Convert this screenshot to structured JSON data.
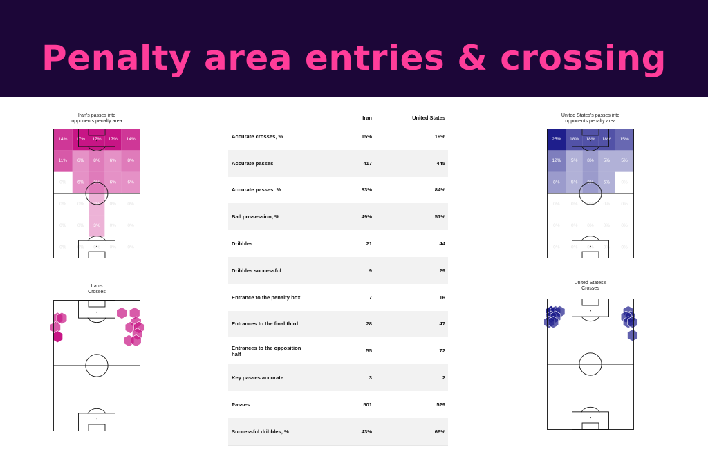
{
  "title": "Penalty area entries & crossing",
  "colors": {
    "banner_bg": "#1c0638",
    "title_color": "#ff3d9a",
    "iran_color": "#c71585",
    "usa_color": "#1e1e8c"
  },
  "chart_data": [
    {
      "type": "heatmap",
      "panel": "iran-entries",
      "title_line1": "Iran's passes into",
      "title_line2": "opponents penalty area",
      "color": "#c71585",
      "grid": {
        "columns": 5,
        "rows": 6,
        "values": [
          [
            "14%",
            "17%",
            "17%",
            "17%",
            "14%"
          ],
          [
            "11%",
            "6%",
            "8%",
            "6%",
            "8%"
          ],
          [
            "0%",
            "6%",
            "8%",
            "6%",
            "6%"
          ],
          [
            "0%",
            "0%",
            "3%",
            "0%",
            "0%"
          ],
          [
            "0%",
            "0%",
            "3%",
            "0%",
            "0%"
          ],
          [
            "0%",
            "0%",
            "0%",
            "0%",
            "0%"
          ]
        ]
      }
    },
    {
      "type": "heatmap",
      "panel": "usa-entries",
      "title_line1": "United States's passes into",
      "title_line2": "opponents penalty area",
      "color": "#1e1e8c",
      "grid": {
        "columns": 5,
        "rows": 6,
        "values": [
          [
            "25%",
            "18%",
            "18%",
            "18%",
            "15%"
          ],
          [
            "12%",
            "5%",
            "8%",
            "5%",
            "5%"
          ],
          [
            "8%",
            "5%",
            "8%",
            "5%",
            "0%"
          ],
          [
            "0%",
            "0%",
            "0%",
            "0%",
            "0%"
          ],
          [
            "0%",
            "0%",
            "0%",
            "0%",
            "0%"
          ],
          [
            "0%",
            "0%",
            "0%",
            "0%",
            "0%"
          ]
        ]
      }
    },
    {
      "type": "scatter",
      "panel": "iran-crosses",
      "title_line1": "Iran's",
      "title_line2": "Crosses",
      "color": "#c71585",
      "points": [
        {
          "x": 3,
          "y": 86,
          "count": 1
        },
        {
          "x": 1.5,
          "y": 79,
          "count": 1
        },
        {
          "x": 3,
          "y": 72,
          "count": 2
        },
        {
          "x": 6,
          "y": 86,
          "count": 1
        },
        {
          "x": 48,
          "y": 90,
          "count": 1
        },
        {
          "x": 57,
          "y": 90,
          "count": 1
        },
        {
          "x": 58,
          "y": 83,
          "count": 1
        },
        {
          "x": 54,
          "y": 79,
          "count": 1
        },
        {
          "x": 60,
          "y": 79,
          "count": 1
        },
        {
          "x": 59,
          "y": 74,
          "count": 1
        },
        {
          "x": 53,
          "y": 69,
          "count": 1
        },
        {
          "x": 58,
          "y": 69,
          "count": 1
        }
      ]
    },
    {
      "type": "scatter",
      "panel": "usa-crosses",
      "title_line1": "United States's",
      "title_line2": "Crosses",
      "color": "#1e1e8c",
      "points": [
        {
          "x": 3,
          "y": 90,
          "count": 2
        },
        {
          "x": 6,
          "y": 90,
          "count": 1
        },
        {
          "x": 9,
          "y": 90,
          "count": 1
        },
        {
          "x": 3,
          "y": 86,
          "count": 1
        },
        {
          "x": 6,
          "y": 86,
          "count": 1
        },
        {
          "x": 1.5,
          "y": 82,
          "count": 1
        },
        {
          "x": 4.5,
          "y": 82,
          "count": 1
        },
        {
          "x": 57,
          "y": 90,
          "count": 1
        },
        {
          "x": 58.5,
          "y": 86,
          "count": 1
        },
        {
          "x": 55.5,
          "y": 86,
          "count": 1
        },
        {
          "x": 57,
          "y": 82,
          "count": 1
        },
        {
          "x": 60,
          "y": 82,
          "count": 1
        },
        {
          "x": 60,
          "y": 72,
          "count": 1
        }
      ]
    }
  ],
  "table": {
    "columns": [
      "",
      "Iran",
      "United States"
    ],
    "rows": [
      {
        "label": "Accurate crosses, %",
        "iran": "15%",
        "usa": "19%"
      },
      {
        "label": "Accurate passes",
        "iran": "417",
        "usa": "445"
      },
      {
        "label": "Accurate passes, %",
        "iran": "83%",
        "usa": "84%"
      },
      {
        "label": "Ball possession, %",
        "iran": "49%",
        "usa": "51%"
      },
      {
        "label": "Dribbles",
        "iran": "21",
        "usa": "44"
      },
      {
        "label": "Dribbles successful",
        "iran": "9",
        "usa": "29"
      },
      {
        "label": "Entrance to the penalty box",
        "iran": "7",
        "usa": "16"
      },
      {
        "label": "Entrances to the final third",
        "iran": "28",
        "usa": "47"
      },
      {
        "label": "Entrances to the opposition half",
        "iran": "55",
        "usa": "72"
      },
      {
        "label": "Key passes accurate",
        "iran": "3",
        "usa": "2"
      },
      {
        "label": "Passes",
        "iran": "501",
        "usa": "529"
      },
      {
        "label": "Successful dribbles, %",
        "iran": "43%",
        "usa": "66%"
      }
    ]
  }
}
